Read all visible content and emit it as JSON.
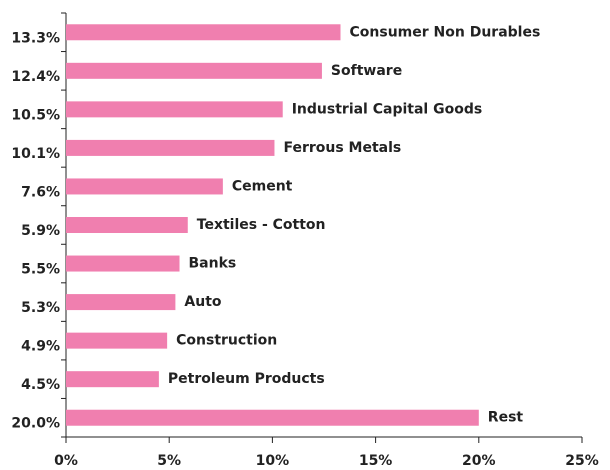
{
  "chart_data": {
    "type": "bar",
    "orientation": "horizontal",
    "categories": [
      "Consumer Non Durables",
      "Software",
      "Industrial Capital Goods",
      "Ferrous Metals",
      "Cement",
      "Textiles - Cotton",
      "Banks",
      "Auto",
      "Construction",
      "Petroleum Products",
      "Rest"
    ],
    "values": [
      13.3,
      12.4,
      10.5,
      10.1,
      7.6,
      5.9,
      5.5,
      5.3,
      4.9,
      4.5,
      20.0
    ],
    "value_labels": [
      "13.3%",
      "12.4%",
      "10.5%",
      "10.1%",
      "7.6%",
      "5.9%",
      "5.5%",
      "5.3%",
      "4.9%",
      "4.5%",
      "20.0%"
    ],
    "color": "#f07faf",
    "xlim": [
      0,
      25
    ],
    "xticks": [
      {
        "value": 0,
        "label": "0%"
      },
      {
        "value": 5,
        "label": "5%"
      },
      {
        "value": 10,
        "label": "10%"
      },
      {
        "value": 15,
        "label": "15%"
      },
      {
        "value": 20,
        "label": "20%"
      },
      {
        "value": 25,
        "label": "25%"
      }
    ],
    "grid": false
  }
}
